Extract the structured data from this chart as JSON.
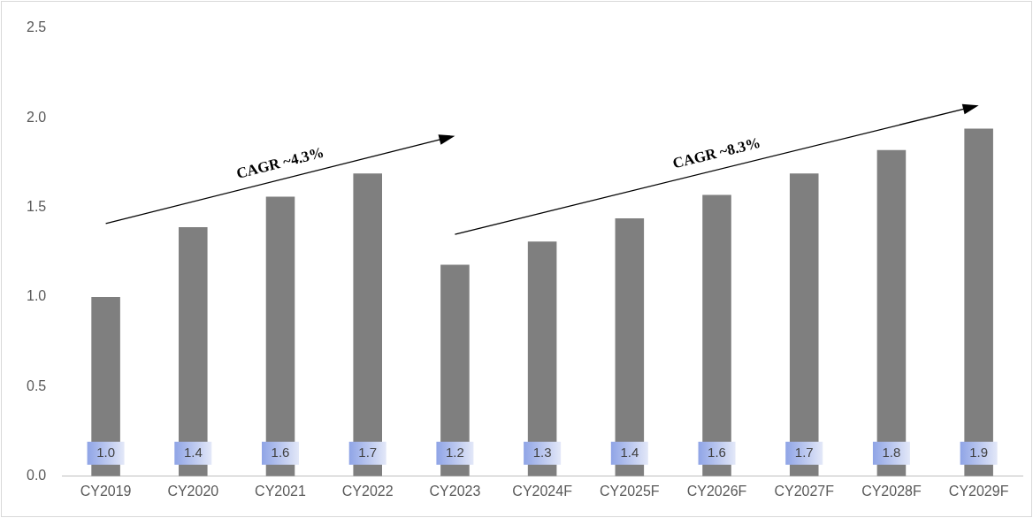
{
  "chart_data": {
    "type": "bar",
    "categories": [
      "CY2019",
      "CY2020",
      "CY2021",
      "CY2022",
      "CY2023",
      "CY2024F",
      "CY2025F",
      "CY2026F",
      "CY2027F",
      "CY2028F",
      "CY2029F"
    ],
    "values": [
      1.0,
      1.39,
      1.56,
      1.69,
      1.18,
      1.31,
      1.44,
      1.57,
      1.69,
      1.82,
      1.94
    ],
    "value_labels": [
      "1.0",
      "1.4",
      "1.6",
      "1.7",
      "1.2",
      "1.3",
      "1.4",
      "1.6",
      "1.7",
      "1.8",
      "1.9"
    ],
    "color": "#7f7f7f",
    "ylim": [
      0,
      2.5
    ],
    "yticks": [
      {
        "value": 0,
        "label": "0.0"
      },
      {
        "value": 0.5,
        "label": "0.5"
      },
      {
        "value": 1,
        "label": "1.0"
      },
      {
        "value": 1.5,
        "label": "1.5"
      },
      {
        "value": 2,
        "label": "2.0"
      },
      {
        "value": 2.5,
        "label": "2.5"
      }
    ],
    "grid": false,
    "legend": false,
    "annotations": [
      "CAGR ~4.3%",
      "CAGR ~8.3%"
    ]
  }
}
